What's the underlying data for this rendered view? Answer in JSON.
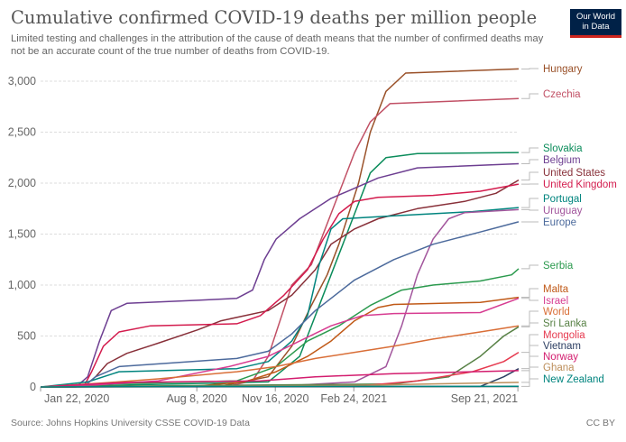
{
  "title": "Cumulative confirmed COVID-19 deaths per million people",
  "subtitle": "Limited testing and challenges in the attribution of the cause of death means that the number of confirmed deaths may not be an accurate count of the true number of deaths from COVID-19.",
  "logo": {
    "line1": "Our World",
    "line2": "in Data"
  },
  "footer": {
    "source": "Source: Johns Hopkins University CSSE COVID-19 Data",
    "license": "CC BY"
  },
  "chart_data": {
    "type": "line",
    "title": "Cumulative confirmed COVID-19 deaths per million people",
    "xlabel": "",
    "ylabel": "",
    "x_unit": "days since Jan 22, 2020",
    "ylim": [
      0,
      3000
    ],
    "y_ticks": [
      0,
      500,
      1000,
      1500,
      2000,
      2500,
      3000
    ],
    "y_tick_labels": [
      "0",
      "500",
      "1,000",
      "1,500",
      "2,000",
      "2,500",
      "3,000"
    ],
    "x_ticks": [
      {
        "day": 0,
        "label": "Jan 22, 2020"
      },
      {
        "day": 199,
        "label": "Aug 8, 2020"
      },
      {
        "day": 299,
        "label": "Nov 16, 2020"
      },
      {
        "day": 399,
        "label": "Feb 24, 2021"
      },
      {
        "day": 608,
        "label": "Sep 21, 2021"
      }
    ],
    "grid": true,
    "legend": "right-end labels",
    "series": [
      {
        "name": "Hungary",
        "color": "#9a5129",
        "points": [
          [
            0,
            0
          ],
          [
            230,
            10
          ],
          [
            290,
            100
          ],
          [
            320,
            400
          ],
          [
            345,
            800
          ],
          [
            365,
            1100
          ],
          [
            380,
            1400
          ],
          [
            405,
            2000
          ],
          [
            420,
            2500
          ],
          [
            440,
            2900
          ],
          [
            465,
            3080
          ],
          [
            609,
            3120
          ]
        ]
      },
      {
        "name": "Czechia",
        "color": "#c15065",
        "points": [
          [
            0,
            0
          ],
          [
            240,
            10
          ],
          [
            270,
            60
          ],
          [
            290,
            300
          ],
          [
            320,
            1000
          ],
          [
            345,
            1200
          ],
          [
            370,
            1700
          ],
          [
            400,
            2300
          ],
          [
            420,
            2600
          ],
          [
            445,
            2780
          ],
          [
            609,
            2830
          ]
        ]
      },
      {
        "name": "Slovakia",
        "color": "#0b8c5b",
        "points": [
          [
            0,
            0
          ],
          [
            290,
            50
          ],
          [
            330,
            300
          ],
          [
            360,
            900
          ],
          [
            385,
            1400
          ],
          [
            400,
            1700
          ],
          [
            420,
            2100
          ],
          [
            440,
            2250
          ],
          [
            480,
            2290
          ],
          [
            609,
            2300
          ]
        ]
      },
      {
        "name": "Belgium",
        "color": "#6d3e91",
        "points": [
          [
            0,
            0
          ],
          [
            45,
            0
          ],
          [
            60,
            100
          ],
          [
            75,
            450
          ],
          [
            90,
            750
          ],
          [
            110,
            820
          ],
          [
            200,
            850
          ],
          [
            250,
            870
          ],
          [
            270,
            950
          ],
          [
            285,
            1250
          ],
          [
            300,
            1450
          ],
          [
            330,
            1650
          ],
          [
            370,
            1850
          ],
          [
            400,
            1950
          ],
          [
            430,
            2050
          ],
          [
            480,
            2150
          ],
          [
            609,
            2190
          ]
        ]
      },
      {
        "name": "United States",
        "color": "#883039",
        "points": [
          [
            0,
            0
          ],
          [
            55,
            5
          ],
          [
            70,
            100
          ],
          [
            85,
            230
          ],
          [
            110,
            330
          ],
          [
            150,
            430
          ],
          [
            200,
            560
          ],
          [
            230,
            650
          ],
          [
            290,
            750
          ],
          [
            320,
            900
          ],
          [
            350,
            1150
          ],
          [
            370,
            1400
          ],
          [
            400,
            1550
          ],
          [
            430,
            1650
          ],
          [
            480,
            1750
          ],
          [
            540,
            1820
          ],
          [
            580,
            1900
          ],
          [
            609,
            2030
          ]
        ]
      },
      {
        "name": "United Kingdom",
        "color": "#d31b4d",
        "points": [
          [
            0,
            0
          ],
          [
            55,
            5
          ],
          [
            65,
            150
          ],
          [
            80,
            400
          ],
          [
            100,
            540
          ],
          [
            140,
            600
          ],
          [
            250,
            620
          ],
          [
            280,
            700
          ],
          [
            310,
            900
          ],
          [
            340,
            1150
          ],
          [
            360,
            1450
          ],
          [
            380,
            1700
          ],
          [
            400,
            1820
          ],
          [
            430,
            1860
          ],
          [
            500,
            1880
          ],
          [
            560,
            1920
          ],
          [
            609,
            1990
          ]
        ]
      },
      {
        "name": "Portugal",
        "color": "#00847e",
        "points": [
          [
            0,
            0
          ],
          [
            60,
            50
          ],
          [
            100,
            150
          ],
          [
            250,
            180
          ],
          [
            290,
            250
          ],
          [
            320,
            450
          ],
          [
            340,
            700
          ],
          [
            355,
            1200
          ],
          [
            370,
            1550
          ],
          [
            385,
            1650
          ],
          [
            450,
            1680
          ],
          [
            550,
            1720
          ],
          [
            609,
            1760
          ]
        ]
      },
      {
        "name": "Uruguay",
        "color": "#a2559c",
        "points": [
          [
            0,
            0
          ],
          [
            300,
            5
          ],
          [
            400,
            50
          ],
          [
            440,
            200
          ],
          [
            460,
            600
          ],
          [
            480,
            1100
          ],
          [
            500,
            1450
          ],
          [
            520,
            1650
          ],
          [
            540,
            1710
          ],
          [
            609,
            1740
          ]
        ]
      },
      {
        "name": "Europe",
        "color": "#4c6a9c",
        "points": [
          [
            0,
            0
          ],
          [
            55,
            5
          ],
          [
            70,
            100
          ],
          [
            100,
            200
          ],
          [
            250,
            280
          ],
          [
            290,
            350
          ],
          [
            320,
            520
          ],
          [
            350,
            750
          ],
          [
            400,
            1050
          ],
          [
            450,
            1250
          ],
          [
            500,
            1400
          ],
          [
            560,
            1520
          ],
          [
            609,
            1620
          ]
        ]
      },
      {
        "name": "Serbia",
        "color": "#2b9a4e",
        "points": [
          [
            0,
            0
          ],
          [
            90,
            30
          ],
          [
            250,
            60
          ],
          [
            300,
            200
          ],
          [
            340,
            450
          ],
          [
            380,
            600
          ],
          [
            420,
            800
          ],
          [
            460,
            950
          ],
          [
            500,
            1000
          ],
          [
            560,
            1040
          ],
          [
            600,
            1100
          ],
          [
            609,
            1160
          ]
        ]
      },
      {
        "name": "Malta",
        "color": "#c05917",
        "points": [
          [
            0,
            0
          ],
          [
            200,
            10
          ],
          [
            260,
            50
          ],
          [
            300,
            150
          ],
          [
            340,
            300
          ],
          [
            370,
            450
          ],
          [
            400,
            650
          ],
          [
            430,
            780
          ],
          [
            450,
            810
          ],
          [
            560,
            830
          ],
          [
            609,
            880
          ]
        ]
      },
      {
        "name": "Israel",
        "color": "#d73c91",
        "points": [
          [
            0,
            0
          ],
          [
            70,
            20
          ],
          [
            150,
            60
          ],
          [
            240,
            200
          ],
          [
            290,
            300
          ],
          [
            330,
            450
          ],
          [
            370,
            600
          ],
          [
            410,
            700
          ],
          [
            450,
            720
          ],
          [
            560,
            730
          ],
          [
            609,
            870
          ]
        ]
      },
      {
        "name": "World",
        "color": "#d96e37",
        "points": [
          [
            0,
            0
          ],
          [
            80,
            40
          ],
          [
            150,
            80
          ],
          [
            250,
            150
          ],
          [
            300,
            200
          ],
          [
            350,
            280
          ],
          [
            400,
            340
          ],
          [
            450,
            400
          ],
          [
            500,
            470
          ],
          [
            560,
            540
          ],
          [
            609,
            600
          ]
        ]
      },
      {
        "name": "Sri Lanka",
        "color": "#578145",
        "points": [
          [
            0,
            0
          ],
          [
            450,
            30
          ],
          [
            520,
            100
          ],
          [
            560,
            300
          ],
          [
            590,
            500
          ],
          [
            609,
            590
          ]
        ]
      },
      {
        "name": "Mongolia",
        "color": "#e63a4f",
        "points": [
          [
            0,
            0
          ],
          [
            400,
            5
          ],
          [
            480,
            60
          ],
          [
            550,
            150
          ],
          [
            590,
            250
          ],
          [
            609,
            340
          ]
        ]
      },
      {
        "name": "Vietnam",
        "color": "#2c3e62",
        "points": [
          [
            0,
            0
          ],
          [
            560,
            5
          ],
          [
            590,
            100
          ],
          [
            609,
            180
          ]
        ]
      },
      {
        "name": "Norway",
        "color": "#d31c6e",
        "points": [
          [
            0,
            0
          ],
          [
            70,
            30
          ],
          [
            110,
            45
          ],
          [
            280,
            60
          ],
          [
            350,
            100
          ],
          [
            450,
            130
          ],
          [
            550,
            150
          ],
          [
            609,
            160
          ]
        ]
      },
      {
        "name": "Ghana",
        "color": "#bc8e5a",
        "points": [
          [
            0,
            0
          ],
          [
            150,
            5
          ],
          [
            400,
            15
          ],
          [
            500,
            30
          ],
          [
            609,
            45
          ]
        ]
      },
      {
        "name": "New Zealand",
        "color": "#00847e",
        "points": [
          [
            0,
            0
          ],
          [
            60,
            3
          ],
          [
            200,
            5
          ],
          [
            609,
            6
          ]
        ]
      }
    ]
  }
}
